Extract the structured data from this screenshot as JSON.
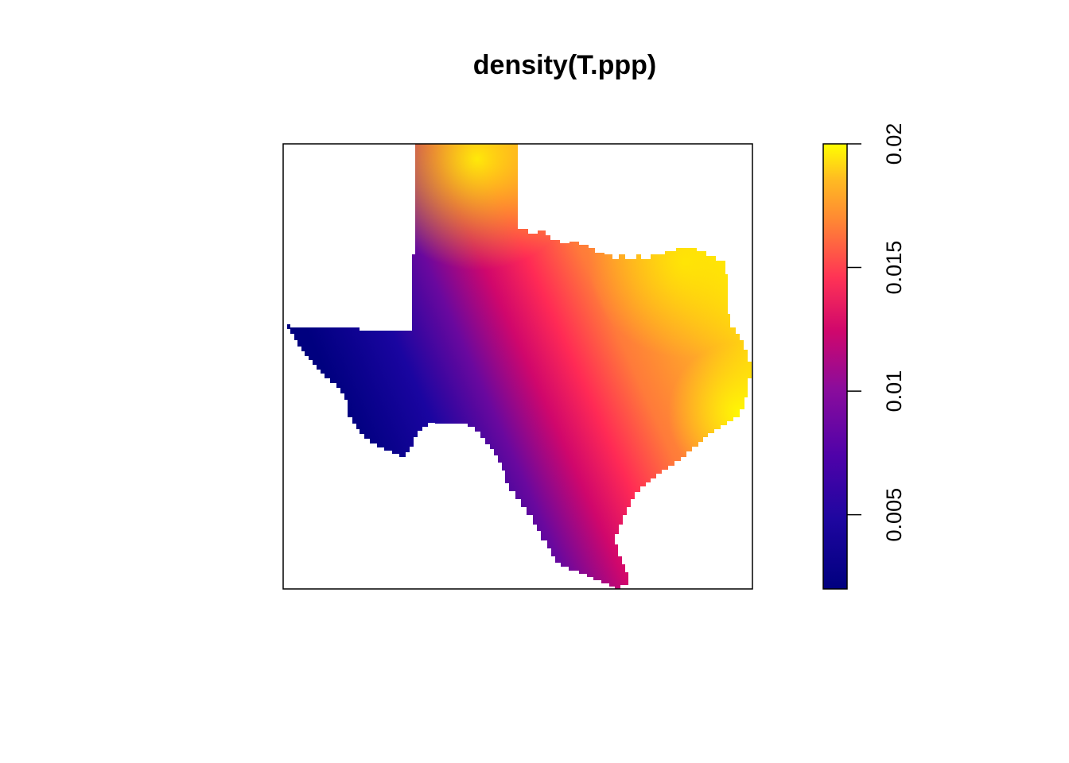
{
  "chart_data": {
    "type": "heatmap",
    "title": "density(T.ppp)",
    "xlabel": "",
    "ylabel": "",
    "legend_placement": "right",
    "colorbar": {
      "range": [
        0.002,
        0.02
      ],
      "ticks": [
        {
          "value": 0.005,
          "label": "0.005"
        },
        {
          "value": 0.01,
          "label": "0.01"
        },
        {
          "value": 0.015,
          "label": "0.015"
        },
        {
          "value": 0.02,
          "label": "0.02"
        }
      ],
      "colors": [
        "#0d0887",
        "#5c01a6",
        "#9c179e",
        "#cc4778",
        "#ed7953",
        "#fdb42f",
        "#f0f921"
      ],
      "low_color": "#00007f",
      "high_color": "#ffff00"
    },
    "grid": false,
    "axes_shown": false
  }
}
